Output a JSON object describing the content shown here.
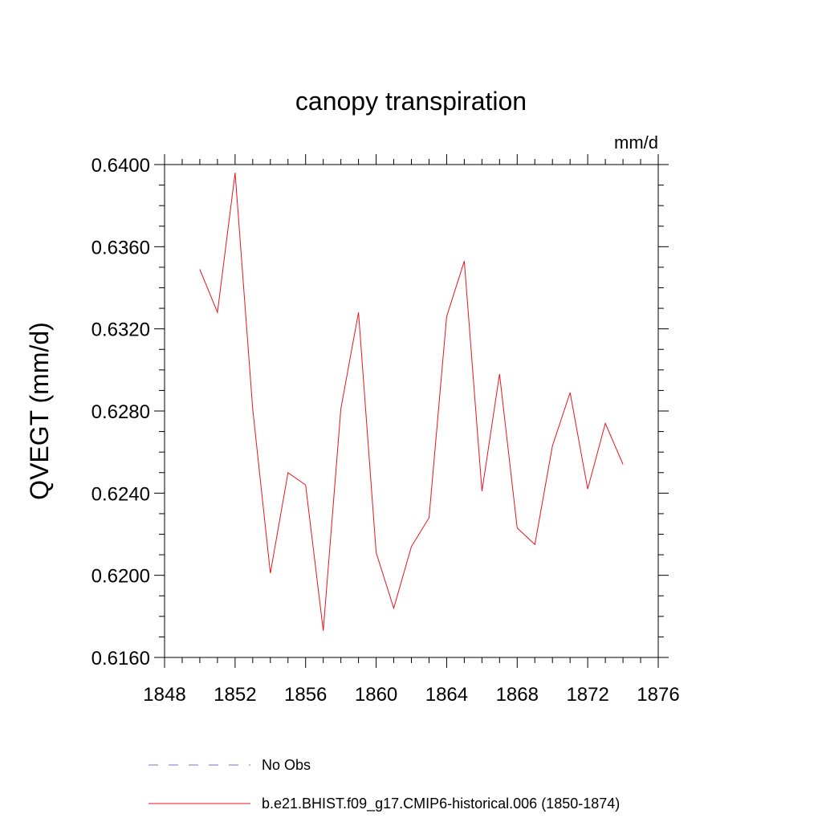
{
  "chart_data": {
    "type": "line",
    "title": "canopy transpiration",
    "units": "mm/d",
    "ylabel": "QVEGT  (mm/d)",
    "xlabel": "",
    "xlim": [
      1848,
      1876
    ],
    "ylim": [
      0.616,
      0.64
    ],
    "xticks": [
      1848,
      1852,
      1856,
      1860,
      1864,
      1868,
      1872,
      1876
    ],
    "xtick_labels": [
      "1848",
      "1852",
      "1856",
      "1860",
      "1864",
      "1868",
      "1872",
      "1876"
    ],
    "yticks": [
      0.616,
      0.62,
      0.624,
      0.628,
      0.632,
      0.636,
      0.64
    ],
    "ytick_labels": [
      "0.6160",
      "0.6200",
      "0.6240",
      "0.6280",
      "0.6320",
      "0.6360",
      "0.6400"
    ],
    "grid": false,
    "legend_position": "bottom",
    "series": [
      {
        "name": "No Obs",
        "color": "#7b6fc9",
        "dash": "dashed",
        "x": [],
        "values": []
      },
      {
        "name": "b.e21.BHIST.f09_g17.CMIP6-historical.006 (1850-1874)",
        "color": "#e8141c",
        "dash": "solid",
        "x": [
          1850,
          1851,
          1852,
          1853,
          1854,
          1855,
          1856,
          1857,
          1858,
          1859,
          1860,
          1861,
          1862,
          1863,
          1864,
          1865,
          1866,
          1867,
          1868,
          1869,
          1870,
          1871,
          1872,
          1873,
          1874
        ],
        "values": [
          0.6349,
          0.6328,
          0.6396,
          0.6281,
          0.6201,
          0.625,
          0.6244,
          0.6173,
          0.6281,
          0.6328,
          0.6211,
          0.6184,
          0.6214,
          0.6228,
          0.6326,
          0.6353,
          0.6241,
          0.6298,
          0.6223,
          0.6215,
          0.6263,
          0.6289,
          0.6242,
          0.6274,
          0.6254
        ]
      }
    ]
  }
}
